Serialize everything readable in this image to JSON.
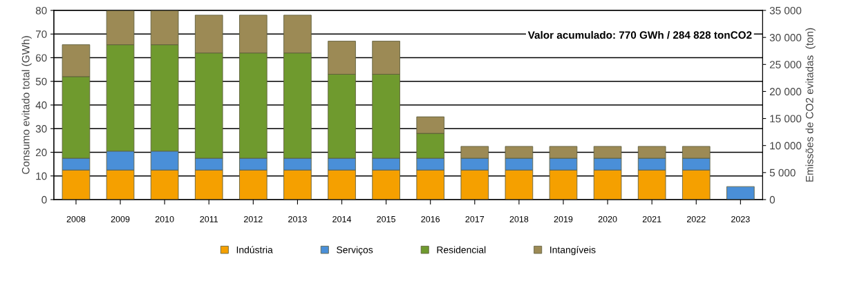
{
  "chart_data": {
    "type": "bar",
    "stacked": true,
    "ylabel": "Consumo evitado total (GWh)",
    "y2label": "Emissões de CO2 evitadas  (ton)",
    "categories": [
      "2008",
      "2009",
      "2010",
      "2011",
      "2012",
      "2013",
      "2014",
      "2015",
      "2016",
      "2017",
      "2018",
      "2019",
      "2020",
      "2021",
      "2022",
      "2023"
    ],
    "series": [
      {
        "name": "Indústria",
        "color": "#f5a000",
        "values": [
          12.5,
          12.5,
          12.5,
          12.5,
          12.5,
          12.5,
          12.5,
          12.5,
          12.5,
          12.5,
          12.5,
          12.5,
          12.5,
          12.5,
          12.5,
          0
        ]
      },
      {
        "name": "Serviços",
        "color": "#4a8fd8",
        "values": [
          5,
          8,
          8,
          5,
          5,
          5,
          5,
          5,
          5,
          5,
          5,
          5,
          5,
          5,
          5,
          5.5
        ]
      },
      {
        "name": "Residencial",
        "color": "#6f9a2e",
        "values": [
          34.5,
          45,
          45,
          44.5,
          44.5,
          44.5,
          35.5,
          35.5,
          10.5,
          0,
          0,
          0,
          0,
          0,
          0,
          0
        ]
      },
      {
        "name": "Intangíveis",
        "color": "#9c8a55",
        "values": [
          13.5,
          14.5,
          14.5,
          16,
          16,
          16,
          14,
          14,
          7,
          5,
          5,
          5,
          5,
          5,
          5,
          0
        ]
      }
    ],
    "ylim": [
      0,
      80
    ],
    "yticks": [
      0,
      10,
      20,
      30,
      40,
      50,
      60,
      70,
      80
    ],
    "y2lim": [
      0,
      35000
    ],
    "y2ticks": [
      {
        "value": 0,
        "label": "0"
      },
      {
        "value": 5000,
        "label": "5 000"
      },
      {
        "value": 10000,
        "label": "10 000"
      },
      {
        "value": 15000,
        "label": "15 000"
      },
      {
        "value": 20000,
        "label": "20 000"
      },
      {
        "value": 25000,
        "label": "25 000"
      },
      {
        "value": 30000,
        "label": "30 000"
      },
      {
        "value": 35000,
        "label": "35 000"
      }
    ],
    "grid": "y",
    "legend": "bottom",
    "annotations": [
      "Valor acumulado: 770 GWh / 284 828 tonCO2"
    ]
  }
}
